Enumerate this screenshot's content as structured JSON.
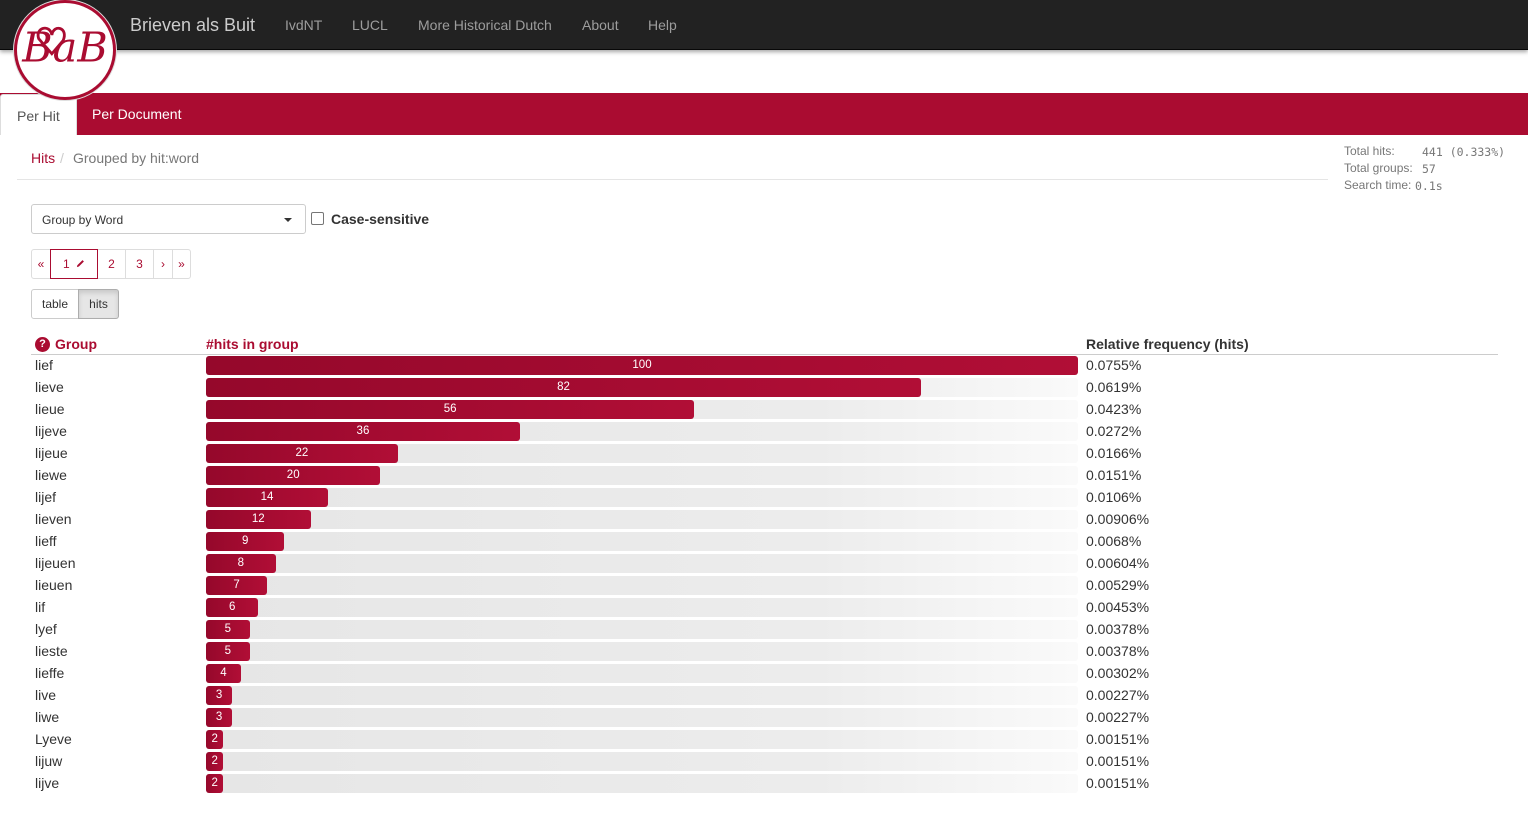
{
  "navbar": {
    "brand": "Brieven als Buit",
    "items": [
      "IvdNT",
      "LUCL",
      "More Historical Dutch",
      "About",
      "Help"
    ]
  },
  "logo": {
    "text": "BaB"
  },
  "tabs": [
    {
      "label": "Per Hit",
      "active": true
    },
    {
      "label": "Per Document",
      "active": false
    }
  ],
  "breadcrumb": {
    "hits": "Hits",
    "separator": "/",
    "current": "Grouped by hit:word"
  },
  "totals": {
    "hits_label": "Total hits:",
    "hits_value": "441 (0.333%)",
    "groups_label": "Total groups:",
    "groups_value": "57",
    "time_label": "Search time:",
    "time_value": "0.1s"
  },
  "group_select": {
    "value": "Group by Word"
  },
  "case_sensitive": {
    "label": "Case-sensitive",
    "checked": false
  },
  "pagination": {
    "first": "«",
    "pages": [
      "1",
      "2",
      "3"
    ],
    "current": "1",
    "next": "›",
    "last": "»"
  },
  "view_toggle": {
    "table": "table",
    "hits": "hits",
    "active": "hits"
  },
  "table": {
    "headers": {
      "group": "Group",
      "hits": "#hits in group",
      "freq": "Relative frequency (hits)"
    },
    "max": 100,
    "rows": [
      {
        "word": "lief",
        "count": 100,
        "freq": "0.0755%"
      },
      {
        "word": "lieve",
        "count": 82,
        "freq": "0.0619%"
      },
      {
        "word": "lieue",
        "count": 56,
        "freq": "0.0423%"
      },
      {
        "word": "lijeve",
        "count": 36,
        "freq": "0.0272%"
      },
      {
        "word": "lijeue",
        "count": 22,
        "freq": "0.0166%"
      },
      {
        "word": "liewe",
        "count": 20,
        "freq": "0.0151%"
      },
      {
        "word": "lijef",
        "count": 14,
        "freq": "0.0106%"
      },
      {
        "word": "lieven",
        "count": 12,
        "freq": "0.00906%"
      },
      {
        "word": "lieff",
        "count": 9,
        "freq": "0.0068%"
      },
      {
        "word": "lijeuen",
        "count": 8,
        "freq": "0.00604%"
      },
      {
        "word": "lieuen",
        "count": 7,
        "freq": "0.00529%"
      },
      {
        "word": "lif",
        "count": 6,
        "freq": "0.00453%"
      },
      {
        "word": "lyef",
        "count": 5,
        "freq": "0.00378%"
      },
      {
        "word": "lieste",
        "count": 5,
        "freq": "0.00378%"
      },
      {
        "word": "lieffe",
        "count": 4,
        "freq": "0.00302%"
      },
      {
        "word": "live",
        "count": 3,
        "freq": "0.00227%"
      },
      {
        "word": "liwe",
        "count": 3,
        "freq": "0.00227%"
      },
      {
        "word": "Lyeve",
        "count": 2,
        "freq": "0.00151%"
      },
      {
        "word": "lijuw",
        "count": 2,
        "freq": "0.00151%"
      },
      {
        "word": "lijve",
        "count": 2,
        "freq": "0.00151%"
      }
    ]
  },
  "colors": {
    "accent": "#aa0c31",
    "navbar": "#222222",
    "nav_text": "#9d9d9d"
  }
}
